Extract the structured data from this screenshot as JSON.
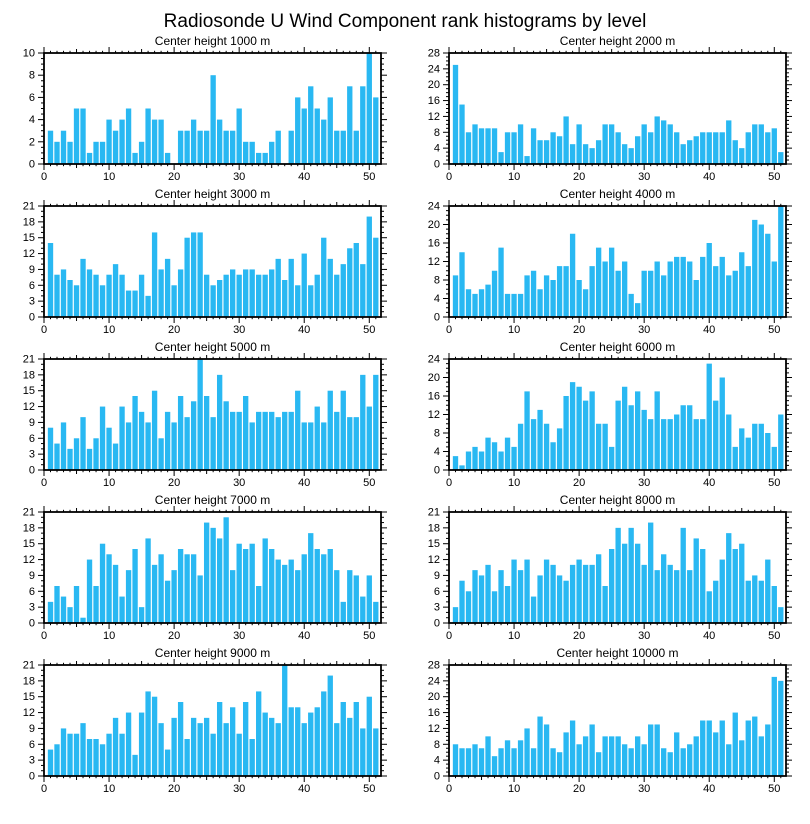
{
  "title": "Radiosonde U Wind Component rank histograms by level",
  "colors": {
    "bar": "#29B8F2",
    "axis": "#000000",
    "text": "#000000",
    "background": "#FFFFFF"
  },
  "axes": {
    "x_tick_labels": [
      0,
      10,
      20,
      30,
      40,
      50
    ],
    "x_range": [
      0,
      51.8
    ],
    "n_bins": 51,
    "rank_start": 1,
    "grid": "off",
    "legend": "none"
  },
  "chart_data": [
    {
      "type": "bar",
      "title": "Center height 1000 m",
      "ylim": [
        0,
        10
      ],
      "ytick_step": 2,
      "values": [
        3,
        2,
        3,
        2,
        5,
        5,
        1,
        2,
        2,
        4,
        3,
        4,
        5,
        1,
        2,
        5,
        4,
        4,
        1,
        0,
        3,
        3,
        4,
        3,
        3,
        8,
        4,
        3,
        3,
        5,
        2,
        2,
        1,
        1,
        2,
        3,
        0,
        3,
        6,
        5,
        7,
        5,
        4,
        6,
        3,
        3,
        7,
        3,
        7,
        10,
        6
      ]
    },
    {
      "type": "bar",
      "title": "Center height 2000 m",
      "ylim": [
        0,
        28
      ],
      "ytick_step": 4,
      "values": [
        25,
        15,
        8,
        10,
        9,
        9,
        9,
        3,
        8,
        8,
        10,
        2,
        9,
        6,
        6,
        8,
        7,
        12,
        5,
        10,
        5,
        4,
        6,
        10,
        10,
        8,
        5,
        4,
        7,
        10,
        8,
        12,
        11,
        10,
        8,
        5,
        6,
        7,
        8,
        8,
        8,
        8,
        11,
        6,
        4,
        8,
        10,
        10,
        8,
        9,
        3
      ]
    },
    {
      "type": "bar",
      "title": "Center height 3000 m",
      "ylim": [
        0,
        21
      ],
      "ytick_step": 3,
      "values": [
        14,
        8,
        9,
        7,
        6,
        11,
        9,
        8,
        6,
        8,
        10,
        8,
        5,
        5,
        8,
        4,
        16,
        9,
        11,
        6,
        9,
        15,
        16,
        16,
        8,
        6,
        7,
        8,
        9,
        8,
        9,
        9,
        8,
        8,
        9,
        11,
        7,
        11,
        6,
        12,
        6,
        8,
        15,
        11,
        8,
        10,
        13,
        14,
        10,
        19,
        15
      ]
    },
    {
      "type": "bar",
      "title": "Center height 4000 m",
      "ylim": [
        0,
        24
      ],
      "ytick_step": 4,
      "values": [
        9,
        14,
        6,
        5,
        6,
        7,
        10,
        15,
        5,
        5,
        5,
        9,
        10,
        6,
        9,
        8,
        11,
        11,
        18,
        8,
        6,
        11,
        15,
        12,
        15,
        10,
        12,
        5,
        3,
        10,
        10,
        12,
        9,
        12,
        13,
        13,
        12,
        8,
        13,
        16,
        11,
        13,
        9,
        10,
        14,
        11,
        21,
        20,
        18,
        12,
        24
      ]
    },
    {
      "type": "bar",
      "title": "Center height 5000 m",
      "ylim": [
        0,
        21
      ],
      "ytick_step": 3,
      "values": [
        8,
        5,
        9,
        4,
        6,
        10,
        4,
        6,
        12,
        8,
        5,
        12,
        9,
        14,
        11,
        9,
        15,
        6,
        11,
        9,
        14,
        10,
        13,
        21,
        14,
        10,
        18,
        13,
        11,
        11,
        14,
        9,
        11,
        11,
        11,
        10,
        11,
        11,
        15,
        9,
        9,
        12,
        9,
        15,
        11,
        15,
        10,
        10,
        18,
        12,
        18
      ]
    },
    {
      "type": "bar",
      "title": "Center height 6000 m",
      "ylim": [
        0,
        24
      ],
      "ytick_step": 4,
      "values": [
        3,
        1,
        4,
        5,
        4,
        7,
        6,
        4,
        7,
        5,
        10,
        17,
        11,
        13,
        10,
        6,
        9,
        16,
        19,
        18,
        15,
        17,
        10,
        10,
        5,
        15,
        18,
        14,
        17,
        13,
        11,
        17,
        11,
        11,
        12,
        14,
        14,
        11,
        11,
        23,
        15,
        20,
        12,
        5,
        9,
        7,
        10,
        10,
        8,
        5,
        12
      ]
    },
    {
      "type": "bar",
      "title": "Center height 7000 m",
      "ylim": [
        0,
        21
      ],
      "ytick_step": 3,
      "values": [
        4,
        7,
        5,
        3,
        7,
        1,
        12,
        7,
        15,
        13,
        11,
        5,
        10,
        14,
        3,
        16,
        11,
        13,
        8,
        10,
        14,
        13,
        13,
        9,
        19,
        18,
        16,
        20,
        10,
        15,
        14,
        15,
        7,
        16,
        14,
        12,
        11,
        12,
        10,
        13,
        17,
        14,
        13,
        14,
        10,
        4,
        10,
        9,
        5,
        9,
        4
      ]
    },
    {
      "type": "bar",
      "title": "Center height 8000 m",
      "ylim": [
        0,
        21
      ],
      "ytick_step": 3,
      "values": [
        3,
        8,
        6,
        10,
        9,
        11,
        6,
        10,
        7,
        12,
        10,
        12,
        5,
        9,
        12,
        11,
        9,
        8,
        11,
        12,
        11,
        11,
        13,
        7,
        14,
        18,
        15,
        18,
        15,
        11,
        19,
        10,
        13,
        11,
        10,
        18,
        10,
        16,
        14,
        6,
        8,
        12,
        17,
        14,
        15,
        8,
        9,
        8,
        12,
        7,
        3
      ]
    },
    {
      "type": "bar",
      "title": "Center height 9000 m",
      "ylim": [
        0,
        21
      ],
      "ytick_step": 3,
      "values": [
        5,
        6,
        9,
        8,
        8,
        10,
        7,
        7,
        6,
        8,
        11,
        8,
        12,
        4,
        12,
        16,
        15,
        10,
        5,
        11,
        14,
        7,
        11,
        10,
        11,
        8,
        14,
        10,
        13,
        8,
        14,
        7,
        16,
        12,
        11,
        10,
        21,
        13,
        13,
        10,
        12,
        13,
        16,
        19,
        10,
        14,
        11,
        14,
        9,
        15,
        9
      ]
    },
    {
      "type": "bar",
      "title": "Center height 10000 m",
      "ylim": [
        0,
        28
      ],
      "ytick_step": 4,
      "values": [
        8,
        7,
        7,
        8,
        7,
        10,
        5,
        7,
        9,
        7,
        9,
        12,
        7,
        15,
        13,
        7,
        6,
        11,
        14,
        8,
        10,
        13,
        6,
        10,
        10,
        10,
        8,
        7,
        10,
        8,
        13,
        13,
        7,
        6,
        11,
        7,
        8,
        10,
        14,
        14,
        11,
        14,
        8,
        16,
        9,
        14,
        15,
        10,
        13,
        25,
        24
      ]
    }
  ]
}
